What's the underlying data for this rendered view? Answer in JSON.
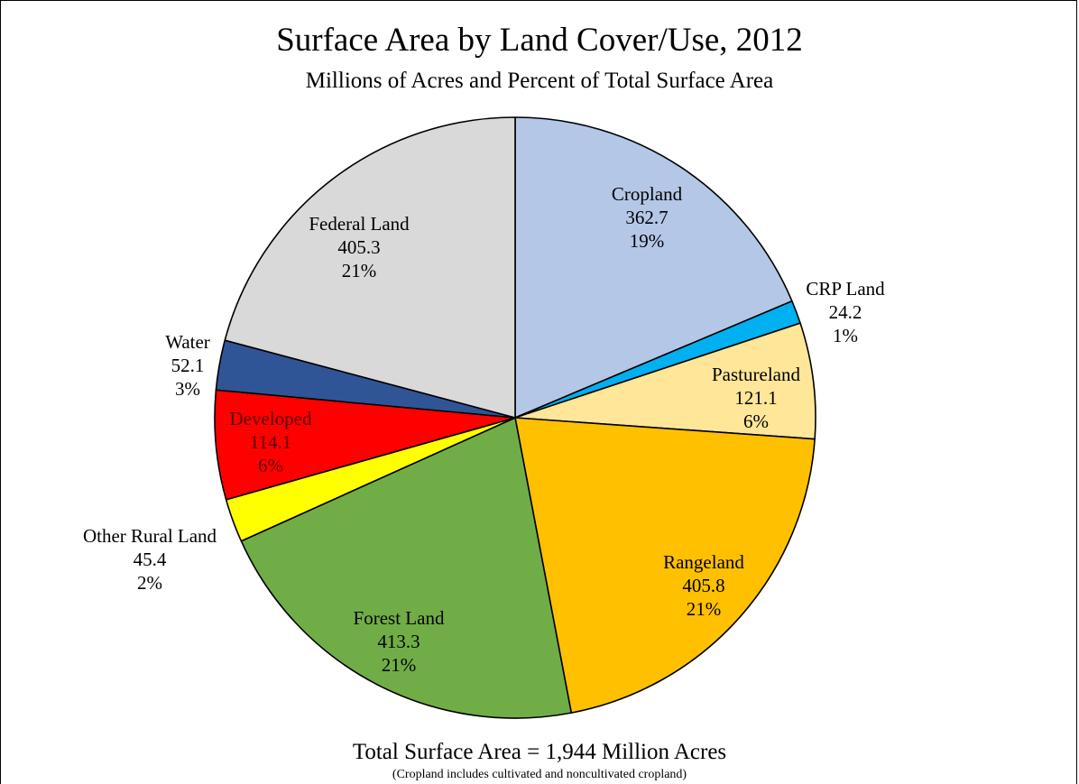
{
  "chart_data": {
    "type": "pie",
    "title": "Surface Area by Land Cover/Use, 2012",
    "subtitle": "Millions of Acres and Percent of Total Surface Area",
    "unit": "Millions of Acres",
    "slices": [
      {
        "name": "Cropland",
        "value": 362.7,
        "value_label": "362.7",
        "percent_label": "19%",
        "color": "#b4c7e7"
      },
      {
        "name": "CRP Land",
        "value": 24.2,
        "value_label": "24.2",
        "percent_label": "1%",
        "color": "#00b0f0"
      },
      {
        "name": "Pastureland",
        "value": 121.1,
        "value_label": "121.1",
        "percent_label": "6%",
        "color": "#ffe699"
      },
      {
        "name": "Rangeland",
        "value": 405.8,
        "value_label": "405.8",
        "percent_label": "21%",
        "color": "#ffc000"
      },
      {
        "name": "Forest Land",
        "value": 413.3,
        "value_label": "413.3",
        "percent_label": "21%",
        "color": "#70ad47"
      },
      {
        "name": "Other Rural Land",
        "value": 45.4,
        "value_label": "45.4",
        "percent_label": "2%",
        "color": "#ffff00"
      },
      {
        "name": "Developed",
        "value": 114.1,
        "value_label": "114.1",
        "percent_label": "6%",
        "color": "#ff0000"
      },
      {
        "name": "Water",
        "value": 52.1,
        "value_label": "52.1",
        "percent_label": "3%",
        "color": "#2f5597"
      },
      {
        "name": "Federal Land",
        "value": 405.3,
        "value_label": "405.3",
        "percent_label": "21%",
        "color": "#d9d9d9"
      }
    ],
    "total_label": "Total Surface Area = 1,944 Million Acres",
    "note": "(Cropland includes cultivated and noncultivated cropland)"
  }
}
